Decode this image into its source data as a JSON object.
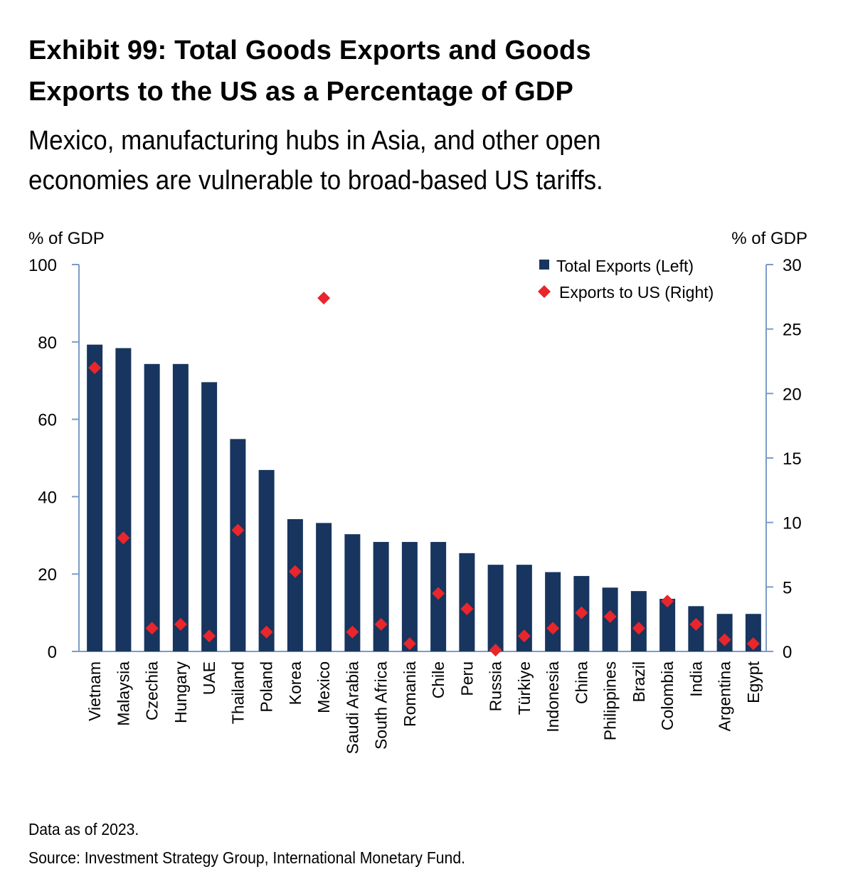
{
  "header": {
    "title_line1": "Exhibit 99: Total Goods Exports and Goods",
    "title_line2": "Exports to the US as a Percentage of GDP",
    "subtitle_line1": "Mexico, manufacturing hubs in Asia, and other open",
    "subtitle_line2": "economies are vulnerable to broad-based US tariffs."
  },
  "footer": {
    "note": "Data as of 2023.",
    "source": "Source: Investment Strategy Group, International Monetary Fund."
  },
  "chart_data": {
    "type": "bar",
    "categories": [
      "Vietnam",
      "Malaysia",
      "Czechia",
      "Hungary",
      "UAE",
      "Thailand",
      "Poland",
      "Korea",
      "Mexico",
      "Saudi Arabia",
      "South Africa",
      "Romania",
      "Chile",
      "Peru",
      "Russia",
      "Türkiye",
      "Indonesia",
      "China",
      "Philippines",
      "Brazil",
      "Colombia",
      "India",
      "Argentina",
      "Egypt"
    ],
    "series": [
      {
        "name": "Total Exports (Left)",
        "type": "bar",
        "axis": "left",
        "color": "#17355e",
        "values": [
          79.3,
          78.4,
          74.3,
          74.3,
          69.6,
          54.9,
          46.9,
          34.2,
          33.2,
          30.3,
          28.3,
          28.3,
          28.3,
          25.4,
          22.4,
          22.4,
          20.5,
          19.5,
          16.5,
          15.6,
          13.6,
          11.7,
          9.7,
          9.7
        ]
      },
      {
        "name": "Exports to US (Right)",
        "type": "scatter",
        "marker": "diamond",
        "axis": "right",
        "color": "#e8262c",
        "values": [
          22.0,
          8.8,
          1.8,
          2.1,
          1.2,
          9.4,
          1.5,
          6.2,
          27.4,
          1.5,
          2.1,
          0.6,
          4.5,
          3.3,
          0.1,
          1.2,
          1.8,
          3.0,
          2.7,
          1.8,
          3.9,
          2.1,
          0.9,
          0.6
        ]
      }
    ],
    "y_left": {
      "label": "% of GDP",
      "lim": [
        0,
        100
      ],
      "ticks": [
        0,
        20,
        40,
        60,
        80,
        100
      ]
    },
    "y_right": {
      "label": "% of GDP",
      "lim": [
        0,
        30
      ],
      "ticks": [
        0,
        5,
        10,
        15,
        20,
        25,
        30
      ]
    },
    "legend": {
      "placement": "top-right"
    },
    "grid": false,
    "axis_color": "#7b9bc8"
  }
}
